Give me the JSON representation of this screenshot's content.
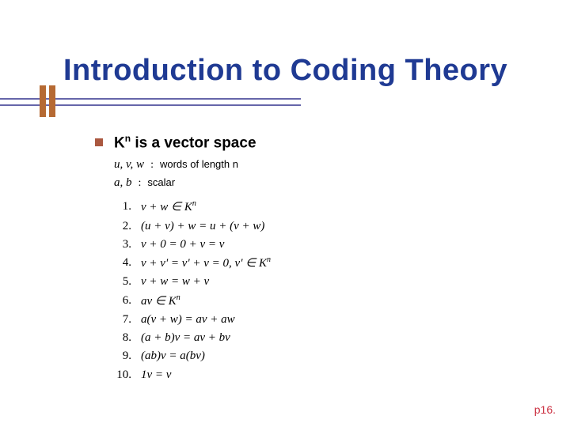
{
  "title": "Introduction to Coding Theory",
  "colors": {
    "title": "#1f3a93",
    "underline": "#6666aa",
    "vbar": "#b66a33",
    "bullet": "#aa5840",
    "pagenum": "#cc3344",
    "background": "#ffffff"
  },
  "typography": {
    "title_fontsize": 38,
    "heading_fontsize": 19,
    "body_fontsize": 15,
    "desc_fontsize": 13
  },
  "heading": {
    "prefix": "K",
    "sup": "n",
    "suffix": " is a vector space"
  },
  "defs": [
    {
      "vars": "u, v, w",
      "colon": ":",
      "desc": "words of length n"
    },
    {
      "vars": "a, b",
      "colon": ":",
      "desc": "scalar"
    }
  ],
  "axioms": [
    {
      "num": "1.",
      "expr_html": "v + w ∈ K<sup>n</sup>"
    },
    {
      "num": "2.",
      "expr_html": "(u + v) + w = u + (v + w)"
    },
    {
      "num": "3.",
      "expr_html": "v + 0 = 0 + v = v"
    },
    {
      "num": "4.",
      "expr_html": "v + v' = v' + v = 0, v' ∈ K<sup>n</sup>"
    },
    {
      "num": "5.",
      "expr_html": "v + w = w + v"
    },
    {
      "num": "6.",
      "expr_html": "av ∈ K<sup>n</sup>"
    },
    {
      "num": "7.",
      "expr_html": "a(v + w) = av + aw"
    },
    {
      "num": "8.",
      "expr_html": "(a + b)v = av + bv"
    },
    {
      "num": "9.",
      "expr_html": "(ab)v = a(bv)"
    },
    {
      "num": "10.",
      "expr_html": "1v = v"
    }
  ],
  "pagenum": "p16."
}
